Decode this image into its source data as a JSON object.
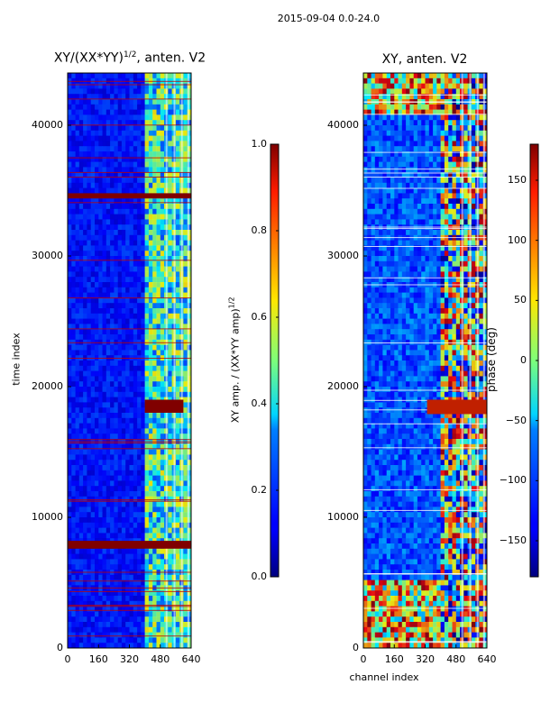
{
  "suptitle": "2015-09-04 0.0-24.0",
  "chart_data": [
    {
      "type": "heatmap",
      "title": "XY/(XX*YY)",
      "title_exponent": "1/2",
      "title_suffix": ", anten. V2",
      "xlabel": "",
      "ylabel": "time index",
      "xlim": [
        0,
        640
      ],
      "ylim": [
        0,
        44000
      ],
      "xticks": [
        0,
        160,
        320,
        480,
        640
      ],
      "yticks": [
        0,
        10000,
        20000,
        30000,
        40000
      ],
      "background_value": 0.12,
      "active_channels": [
        400,
        640
      ],
      "notable_rows": [
        {
          "t_start": 7600,
          "t_end": 8200,
          "value": 1.0
        },
        {
          "t_start": 34400,
          "t_end": 34800,
          "value": 1.0
        },
        {
          "t_start": 18000,
          "t_end": 19000,
          "value": 1.0
        }
      ],
      "colorbar": {
        "min": 0.0,
        "max": 1.0,
        "ticks": [
          "0.0",
          "0.2",
          "0.4",
          "0.6",
          "0.8",
          "1.0"
        ],
        "label": "XY amp. / (XX*YY amp)",
        "label_exponent": "1/2",
        "colormap": "jet"
      }
    },
    {
      "type": "heatmap",
      "title": "XY, anten. V2",
      "xlabel": "channel index",
      "ylabel": "",
      "xlim": [
        0,
        640
      ],
      "ylim": [
        0,
        44000
      ],
      "xticks": [
        0,
        160,
        320,
        480,
        640
      ],
      "yticks": [
        0,
        10000,
        20000,
        30000,
        40000
      ],
      "active_channels": [
        400,
        640
      ],
      "colorbar": {
        "min": -180,
        "max": 180,
        "ticks": [
          "−150",
          "−100",
          "−50",
          "0",
          "50",
          "100",
          "150"
        ],
        "tick_values": [
          -150,
          -100,
          -50,
          0,
          50,
          100,
          150
        ],
        "label": "phase (deg)",
        "colormap": "jet"
      }
    }
  ],
  "colors": {
    "jet_dark_blue": "#00007f",
    "jet_red": "#7f0000"
  }
}
